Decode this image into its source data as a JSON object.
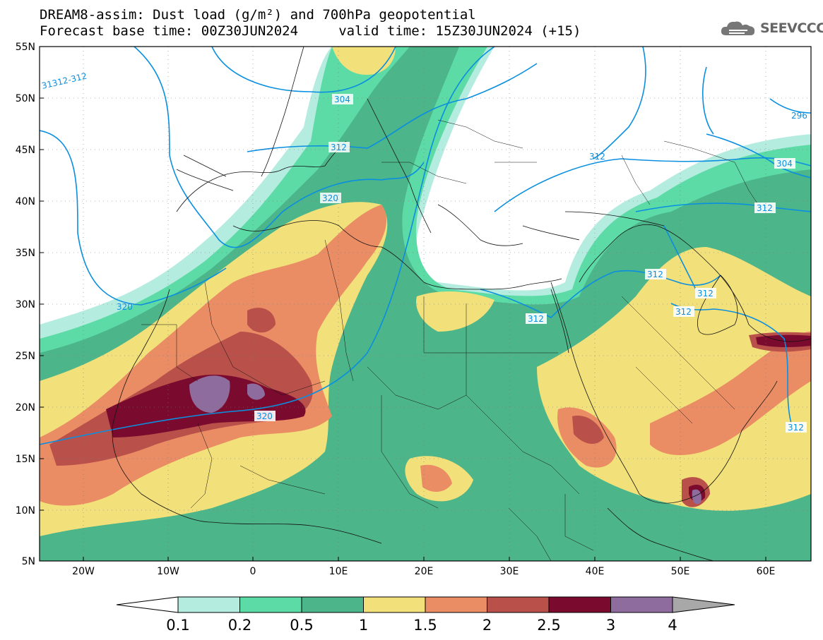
{
  "header": {
    "line1": "DREAM8-assim: Dust load (g/m²) and 700hPa geopotential",
    "line2": "Forecast base time: 00Z30JUN2024     valid time: 15Z30JUN2024 (+15)"
  },
  "logo": {
    "text": "SEEVCCC",
    "icon": "cloud-logo-icon"
  },
  "axes": {
    "lat_labels": [
      "55N",
      "50N",
      "45N",
      "40N",
      "35N",
      "30N",
      "25N",
      "20N",
      "15N",
      "10N",
      "5N"
    ],
    "lon_labels": [
      "20W",
      "10W",
      "0",
      "10E",
      "20E",
      "30E",
      "40E",
      "50E",
      "60E"
    ]
  },
  "contour_labels": [
    "31312-312",
    "304",
    "312",
    "320",
    "320",
    "320",
    "312",
    "312",
    "312",
    "312",
    "312",
    "312",
    "304",
    "296",
    "312"
  ],
  "colorbar": {
    "ticks": [
      "0.1",
      "0.2",
      "0.5",
      "1",
      "1.5",
      "2",
      "2.5",
      "3",
      "4"
    ],
    "colors": [
      "#b5ece0",
      "#5ddba7",
      "#4db58a",
      "#f2e07a",
      "#ea8c64",
      "#b9514a",
      "#7b0b2e",
      "#8e6c9e"
    ],
    "under_color": "#ffffff",
    "over_color": "#a8a8a8"
  },
  "colors": {
    "contour_line": "#0a8fe0"
  }
}
